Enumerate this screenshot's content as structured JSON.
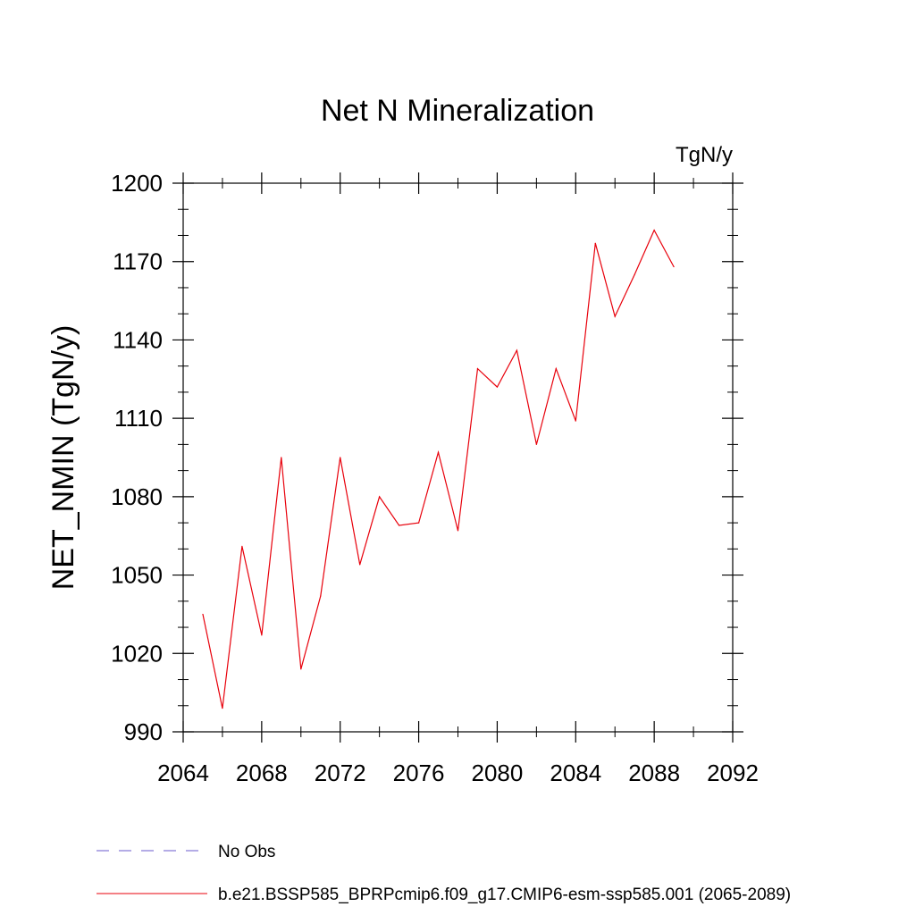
{
  "chart_data": {
    "type": "line",
    "title": "Net N Mineralization",
    "units_label": "TgN/y",
    "ylabel": "NET_NMIN  (TgN/y)",
    "xlabel": "",
    "xlim": [
      2064,
      2092
    ],
    "ylim": [
      990,
      1200
    ],
    "x_ticks": [
      2064,
      2068,
      2072,
      2076,
      2080,
      2084,
      2088,
      2092
    ],
    "y_ticks": [
      990,
      1020,
      1050,
      1080,
      1110,
      1140,
      1170,
      1200
    ],
    "grid": false,
    "legend_position": "bottom-left",
    "series": [
      {
        "name": "b.e21.BSSP585_BPRPcmip6.f09_g17.CMIP6-esm-ssp585.001 (2065-2089)",
        "color": "#e8000b",
        "dash": "solid",
        "x": [
          2065,
          2066,
          2067,
          2068,
          2069,
          2070,
          2071,
          2072,
          2073,
          2074,
          2075,
          2076,
          2077,
          2078,
          2079,
          2080,
          2081,
          2082,
          2083,
          2084,
          2085,
          2086,
          2087,
          2088,
          2089
        ],
        "values": [
          1035,
          999,
          1061,
          1027,
          1095,
          1014,
          1042,
          1095,
          1054,
          1080,
          1069,
          1070,
          1097,
          1067,
          1129,
          1122,
          1136,
          1100,
          1129,
          1109,
          1177,
          1149,
          1165,
          1182,
          1168
        ]
      }
    ],
    "legend": [
      {
        "label": "No Obs",
        "color": "#6a5acd",
        "dash": "dashed"
      },
      {
        "label": "b.e21.BSSP585_BPRPcmip6.f09_g17.CMIP6-esm-ssp585.001 (2065-2089)",
        "color": "#e8000b",
        "dash": "solid"
      }
    ]
  }
}
